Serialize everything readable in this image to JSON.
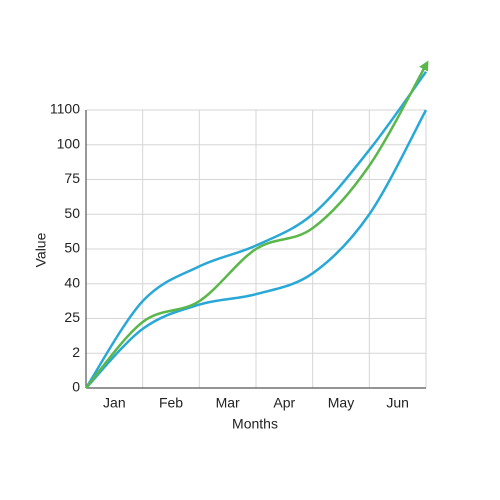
{
  "chart_data": {
    "type": "line",
    "x_label": "Months",
    "y_label": "Value",
    "x": [
      0,
      1,
      2,
      3,
      4,
      5,
      6
    ],
    "xlim": [
      0,
      6
    ],
    "xticks": [
      {
        "value": 0.5,
        "label": "Jan"
      },
      {
        "value": 1.5,
        "label": "Feb"
      },
      {
        "value": 2.5,
        "label": "Mar"
      },
      {
        "value": 3.5,
        "label": "Apr"
      },
      {
        "value": 4.5,
        "label": "May"
      },
      {
        "value": 5.5,
        "label": "Jun"
      }
    ],
    "ylim": [
      0,
      8
    ],
    "yticks": [
      {
        "value": 0,
        "label": "0"
      },
      {
        "value": 1,
        "label": "2"
      },
      {
        "value": 2,
        "label": "25"
      },
      {
        "value": 3,
        "label": "40"
      },
      {
        "value": 4,
        "label": "50"
      },
      {
        "value": 5,
        "label": "50"
      },
      {
        "value": 6,
        "label": "75"
      },
      {
        "value": 7,
        "label": "100"
      },
      {
        "value": 8,
        "label": "1100"
      }
    ],
    "grid": true,
    "series": [
      {
        "color": "#29a8d8",
        "values": [
          0,
          2.5,
          3.5,
          4.1,
          5.0,
          6.85,
          9.1
        ]
      },
      {
        "color": "#29a8d8",
        "values": [
          0,
          1.7,
          2.4,
          2.7,
          3.3,
          5.0,
          8.0
        ]
      },
      {
        "color": "#5ab74a",
        "values": [
          0,
          1.9,
          2.5,
          4.0,
          4.6,
          6.4,
          9.3
        ],
        "arrow": true
      }
    ]
  }
}
